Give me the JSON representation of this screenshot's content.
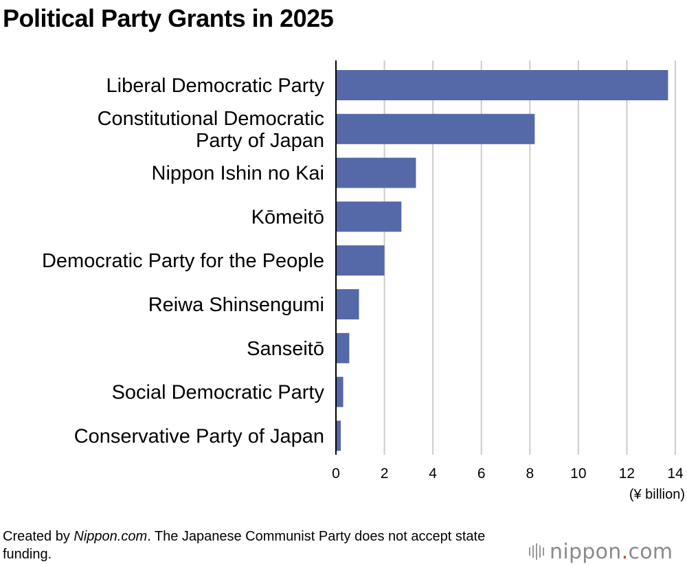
{
  "title": "Political Party Grants in 2025",
  "chart_data": {
    "type": "bar",
    "orientation": "horizontal",
    "title": "Political Party Grants in 2025",
    "categories": [
      [
        "Liberal Democratic Party"
      ],
      [
        "Constitutional Democratic",
        "Party of Japan"
      ],
      [
        "Nippon Ishin no Kai"
      ],
      [
        "Kōmeitō"
      ],
      [
        "Democratic Party for the People"
      ],
      [
        "Reiwa Shinsengumi"
      ],
      [
        "Sanseitō"
      ],
      [
        "Social Democratic Party"
      ],
      [
        "Conservative Party of Japan"
      ]
    ],
    "values": [
      13.7,
      8.2,
      3.3,
      2.7,
      2.0,
      0.95,
      0.55,
      0.3,
      0.2
    ],
    "xlim": [
      0,
      14
    ],
    "xticks": [
      0,
      2,
      4,
      6,
      8,
      10,
      12,
      14
    ],
    "xlabel": "(¥ billion)",
    "grid": true,
    "bar_color": "#5568a8"
  },
  "footnote": {
    "prefix": "Created by ",
    "source": "Nippon.com",
    "text": ". The Japanese Communist Party does not accept state funding."
  },
  "logo": {
    "word": "nippon",
    "dot": ".",
    "tld": "com"
  }
}
